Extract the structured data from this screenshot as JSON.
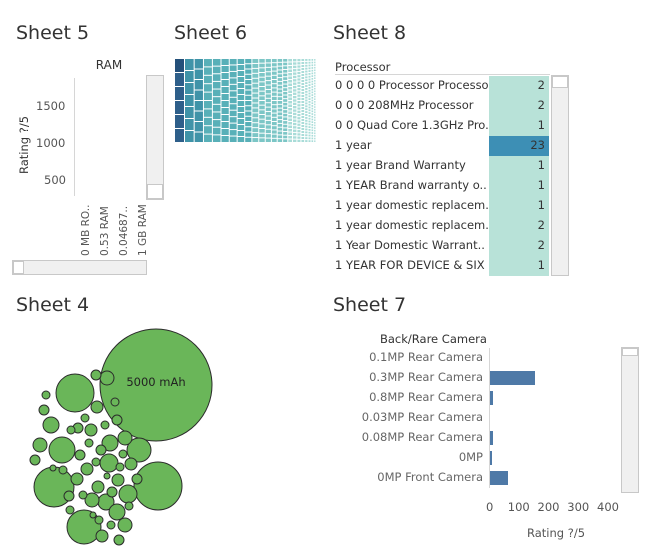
{
  "sheets": {
    "s5": "Sheet 5",
    "s6": "Sheet 6",
    "s8": "Sheet 8",
    "s4": "Sheet 4",
    "s7": "Sheet 7"
  },
  "sheet5": {
    "header": "RAM",
    "y_label": "Rating ?/5",
    "y_ticks": [
      "1500",
      "1000",
      "500"
    ],
    "x_ticks": [
      "0 MB RO..",
      "0.53 RAM",
      "0.04687..",
      "1 GB RAM"
    ]
  },
  "sheet8": {
    "header": "Processor",
    "rows": [
      {
        "label": "0 0 0 0 Processor Processor",
        "value": "2"
      },
      {
        "label": "0 0 0 208MHz Processor",
        "value": "2"
      },
      {
        "label": "0 0 Quad Core 1.3GHz Pro..",
        "value": "1"
      },
      {
        "label": "1 year",
        "value": "23"
      },
      {
        "label": "1 year Brand Warranty",
        "value": "1"
      },
      {
        "label": "1 YEAR Brand warranty o..",
        "value": "1"
      },
      {
        "label": "1 year domestic replacem..",
        "value": "1"
      },
      {
        "label": "1 year domestic replacem..",
        "value": "2"
      },
      {
        "label": "1 Year Domestic Warrant..",
        "value": "2"
      },
      {
        "label": "1 YEAR FOR DEVICE & SIX ..",
        "value": "1"
      }
    ],
    "colors": {
      "light": "#b8e2d8",
      "highlight": "#3d8fb5"
    }
  },
  "sheet4": {
    "big_bubble_label": "5000 mAh",
    "color": "#6ab659"
  },
  "sheet7": {
    "header": "Back/Rare Camera",
    "x_label": "Rating ?/5",
    "x_ticks": [
      "0",
      "100",
      "200",
      "300",
      "400"
    ]
  },
  "chart_data": [
    {
      "type": "bar",
      "title": "Sheet 7",
      "header": "Back/Rare Camera",
      "categories": [
        "0.1MP Rear Camera",
        "0.3MP Rear Camera",
        "0.8MP Rear Camera",
        "0.03MP Rear Camera",
        "0.08MP Rear Camera",
        "0MP",
        "0MP Front Camera"
      ],
      "values": [
        0,
        152,
        10,
        0,
        10,
        2,
        62
      ],
      "xlabel": "Rating ?/5",
      "xlim": [
        0,
        430
      ],
      "color": "#4e79a7"
    }
  ]
}
